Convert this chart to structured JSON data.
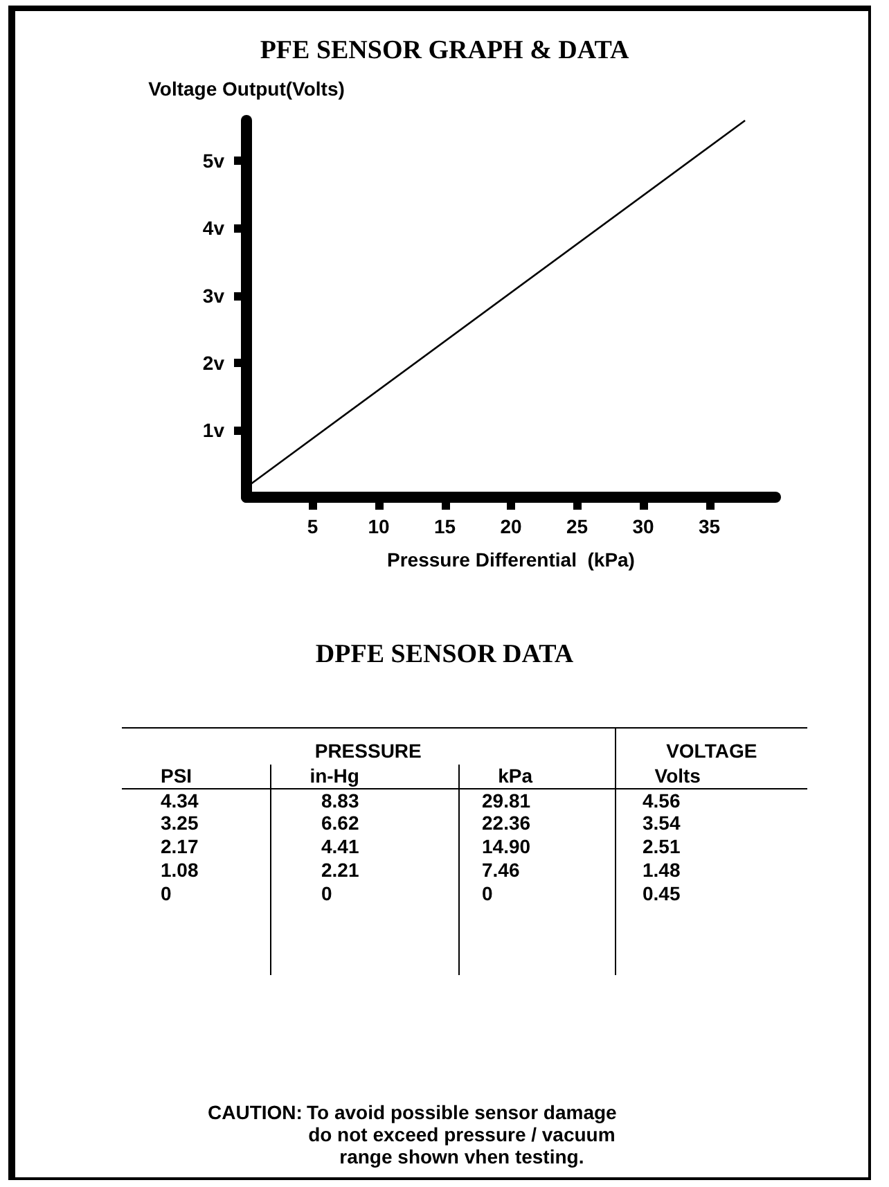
{
  "chart_data": [
    {
      "type": "line",
      "title": "PFE SENSOR GRAPH & DATA",
      "xlabel": "Pressure Differential  (kPa)",
      "ylabel": "Voltage Output(Volts)",
      "x": [
        0,
        37.7
      ],
      "series": [
        {
          "color": "#000000",
          "values": [
            0.15,
            5.6
          ]
        }
      ],
      "xlim": [
        0,
        40
      ],
      "ylim": [
        0,
        5.6
      ],
      "xticks": [
        5,
        10,
        15,
        20,
        25,
        30,
        35
      ],
      "yticks": [
        {
          "value": 1,
          "label": "1v"
        },
        {
          "value": 2,
          "label": "2v"
        },
        {
          "value": 3,
          "label": "3v"
        },
        {
          "value": 4,
          "label": "4v"
        },
        {
          "value": 5,
          "label": "5v"
        }
      ],
      "grid": false,
      "marker": "none",
      "line_style": "solid"
    },
    {
      "type": "other",
      "title": "DPFE SENSOR DATA",
      "categories": [
        "PSI",
        "in-Hg",
        "kPa",
        "Volts"
      ],
      "annotations": [
        "PRESSURE",
        "VOLTAGE",
        "4.34\t8.83\t29.81\t4.56",
        "3.25\t6.62\t22.36\t3.54",
        "2.17\t4.41\t14.90\t2.51",
        "1.08\t2.21\t7.46\t1.48",
        "0\t0\t0\t0.45",
        "CAUTION:",
        "To avoid possible sensor damage do not exceed pressure / vacuum range shown vhen testing."
      ]
    }
  ]
}
